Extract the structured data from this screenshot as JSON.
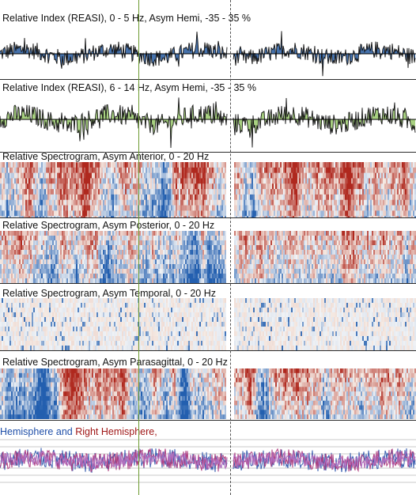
{
  "panels": [
    {
      "title": "Relative Index (REASI), 0 - 5 Hz, Asym Hemi, -35 - 35 %",
      "kind": "index",
      "fill": "#3c6aa8"
    },
    {
      "title": "Relative Index (REASI), 6 - 14 Hz, Asym Hemi, -35 - 35 %",
      "kind": "index",
      "fill": "#a3cf7a"
    },
    {
      "title": "Relative Spectrogram, Asym Anterior, 0 - 20 Hz",
      "kind": "spectrogram",
      "bias": 0.6
    },
    {
      "title": "Relative Spectrogram, Asym Posterior, 0 - 20 Hz",
      "kind": "spectrogram",
      "bias": 0.3
    },
    {
      "title": "Relative Spectrogram, Asym Temporal, 0 - 20 Hz",
      "kind": "spectrogram",
      "bias": -0.5
    },
    {
      "title": "Relative Spectrogram, Asym Parasagittal, 0 - 20 Hz",
      "kind": "spectrogram",
      "bias": 0.2
    }
  ],
  "legend": {
    "left": "Hemisphere",
    "and": " and ",
    "right": "Right",
    "right_suffix": " Hemisphere",
    "comma": ","
  },
  "colors": {
    "left_hemisphere": "#3a5fb0",
    "right_hemisphere": "#b04080",
    "overlap": "#b070c0",
    "cursor": "#6b9a2f",
    "marker": "#555555"
  }
}
